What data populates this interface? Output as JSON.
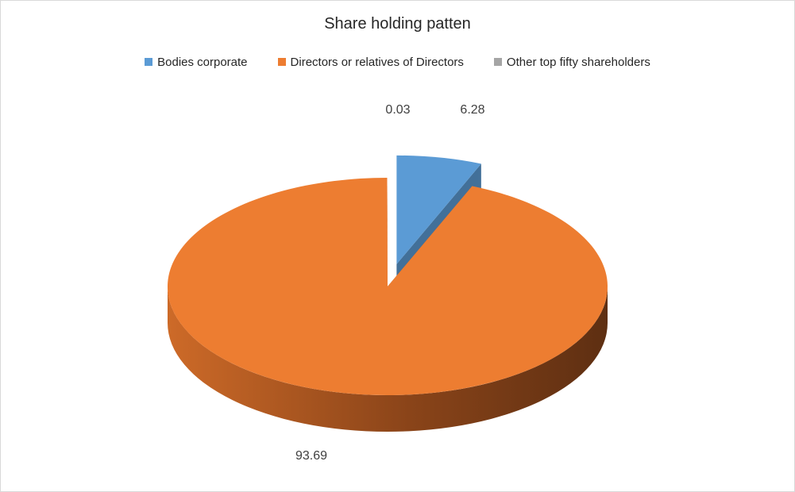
{
  "chart_data": {
    "type": "pie",
    "style": "3d-exploded",
    "title": "Share holding patten",
    "legend_position": "top",
    "categories": [
      "Bodies corporate",
      "Directors or relatives of Directors",
      "Other top fifty shareholders"
    ],
    "values": [
      6.28,
      93.69,
      0.03
    ],
    "value_labels": [
      "6.28",
      "93.69",
      "0.03"
    ],
    "colors": [
      "#5b9bd5",
      "#ed7d31",
      "#a5a5a5"
    ]
  }
}
